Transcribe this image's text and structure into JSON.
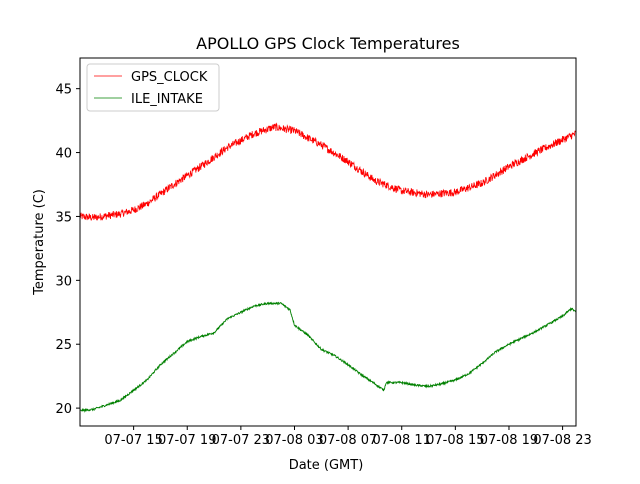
{
  "chart_data": {
    "type": "line",
    "title": "APOLLO GPS Clock Temperatures",
    "xlabel": "Date (GMT)",
    "ylabel": "Temperature (C)",
    "xlim": [
      "07-07 11:00",
      "07-09 00:00"
    ],
    "ylim": [
      18.6,
      47.4
    ],
    "x_ticks": [
      {
        "t": "07-07 15:00",
        "label": "07-07 15"
      },
      {
        "t": "07-07 19:00",
        "label": "07-07 19"
      },
      {
        "t": "07-07 23:00",
        "label": "07-07 23"
      },
      {
        "t": "07-08 03:00",
        "label": "07-08 03"
      },
      {
        "t": "07-08 07:00",
        "label": "07-08 07"
      },
      {
        "t": "07-08 11:00",
        "label": "07-08 11"
      },
      {
        "t": "07-08 15:00",
        "label": "07-08 15"
      },
      {
        "t": "07-08 19:00",
        "label": "07-08 19"
      },
      {
        "t": "07-08 23:00",
        "label": "07-08 23"
      }
    ],
    "y_ticks": [
      20,
      25,
      30,
      35,
      40,
      45
    ],
    "legend_position": "top-left",
    "grid": false,
    "series": [
      {
        "name": "GPS_CLOCK",
        "color": "#ff0000",
        "noise": 0.6,
        "points": [
          [
            "07-07 11:00",
            35.0
          ],
          [
            "07-07 12:00",
            34.9
          ],
          [
            "07-07 14:00",
            35.2
          ],
          [
            "07-07 15:00",
            35.5
          ],
          [
            "07-07 16:00",
            36.0
          ],
          [
            "07-07 18:00",
            37.5
          ],
          [
            "07-07 20:00",
            38.9
          ],
          [
            "07-07 22:00",
            40.4
          ],
          [
            "07-08 00:00",
            41.5
          ],
          [
            "07-08 01:30",
            42.0
          ],
          [
            "07-08 03:00",
            41.7
          ],
          [
            "07-08 05:00",
            40.6
          ],
          [
            "07-08 07:00",
            39.3
          ],
          [
            "07-08 09:00",
            37.8
          ],
          [
            "07-08 11:00",
            37.0
          ],
          [
            "07-08 13:00",
            36.7
          ],
          [
            "07-08 15:00",
            36.9
          ],
          [
            "07-08 17:00",
            37.6
          ],
          [
            "07-08 19:00",
            38.9
          ],
          [
            "07-08 21:00",
            40.0
          ],
          [
            "07-08 23:00",
            41.0
          ],
          [
            "07-09 00:00",
            41.5
          ]
        ]
      },
      {
        "name": "ILE_INTAKE",
        "color": "#008000",
        "noise": 0.15,
        "points": [
          [
            "07-07 11:00",
            19.8
          ],
          [
            "07-07 12:00",
            19.9
          ],
          [
            "07-07 14:00",
            20.6
          ],
          [
            "07-07 15:00",
            21.4
          ],
          [
            "07-07 16:00",
            22.2
          ],
          [
            "07-07 17:00",
            23.4
          ],
          [
            "07-07 18:00",
            24.3
          ],
          [
            "07-07 19:00",
            25.2
          ],
          [
            "07-07 20:00",
            25.6
          ],
          [
            "07-07 21:00",
            25.9
          ],
          [
            "07-07 22:00",
            27.0
          ],
          [
            "07-07 23:00",
            27.5
          ],
          [
            "07-08 00:00",
            28.0
          ],
          [
            "07-08 01:00",
            28.2
          ],
          [
            "07-08 02:00",
            28.2
          ],
          [
            "07-08 02:40",
            27.7
          ],
          [
            "07-08 03:00",
            26.5
          ],
          [
            "07-08 04:00",
            25.7
          ],
          [
            "07-08 05:00",
            24.6
          ],
          [
            "07-08 06:00",
            24.1
          ],
          [
            "07-08 07:00",
            23.4
          ],
          [
            "07-08 08:00",
            22.6
          ],
          [
            "07-08 09:00",
            21.9
          ],
          [
            "07-08 09:40",
            21.4
          ],
          [
            "07-08 09:50",
            22.0
          ],
          [
            "07-08 11:00",
            22.0
          ],
          [
            "07-08 12:00",
            21.8
          ],
          [
            "07-08 13:00",
            21.7
          ],
          [
            "07-08 14:00",
            21.9
          ],
          [
            "07-08 15:00",
            22.2
          ],
          [
            "07-08 16:00",
            22.7
          ],
          [
            "07-08 17:00",
            23.5
          ],
          [
            "07-08 18:00",
            24.4
          ],
          [
            "07-08 19:00",
            25.0
          ],
          [
            "07-08 20:00",
            25.5
          ],
          [
            "07-08 21:00",
            26.0
          ],
          [
            "07-08 22:00",
            26.6
          ],
          [
            "07-08 23:00",
            27.2
          ],
          [
            "07-08 23:40",
            27.8
          ],
          [
            "07-09 00:00",
            27.5
          ]
        ]
      }
    ]
  }
}
